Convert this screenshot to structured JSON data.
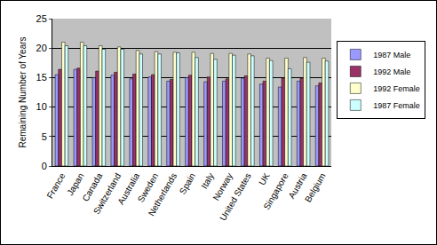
{
  "chart_data": {
    "type": "bar",
    "y_label": "Remaining Number of Years",
    "categories": [
      "France",
      "Japan",
      "Canada",
      "Switzerland",
      "Australia",
      "Sweden",
      "Netherlands",
      "Spain",
      "Italy",
      "Norway",
      "United States",
      "UK",
      "Singapore",
      "Austria",
      "Belgium"
    ],
    "series": [
      {
        "name": "1987 Male",
        "color": "#9999ff",
        "values": [
          15.5,
          16.4,
          15.0,
          15.4,
          14.8,
          15.1,
          14.4,
          15.0,
          14.3,
          14.4,
          14.9,
          13.9,
          13.4,
          14.4,
          13.6
        ]
      },
      {
        "name": "1992 Male",
        "color": "#993366",
        "values": [
          16.4,
          16.6,
          16.1,
          15.9,
          15.6,
          15.5,
          14.7,
          15.4,
          15.1,
          14.8,
          15.3,
          14.4,
          14.9,
          14.9,
          14.1
        ]
      },
      {
        "name": "1992 Female",
        "color": "#ffffcc",
        "values": [
          21.0,
          21.0,
          20.4,
          20.2,
          19.6,
          19.4,
          19.3,
          19.3,
          19.1,
          19.1,
          19.0,
          18.3,
          18.3,
          18.4,
          18.3
        ]
      },
      {
        "name": "1987 Female",
        "color": "#ccffff",
        "values": [
          20.4,
          20.4,
          19.8,
          19.8,
          19.0,
          19.0,
          19.2,
          18.4,
          18.1,
          18.8,
          18.7,
          17.9,
          16.5,
          17.6,
          17.8
        ]
      }
    ],
    "ylim": [
      0,
      25
    ],
    "yticks": [
      0,
      5,
      10,
      15,
      20,
      25
    ],
    "grid": true,
    "legend": "right"
  }
}
